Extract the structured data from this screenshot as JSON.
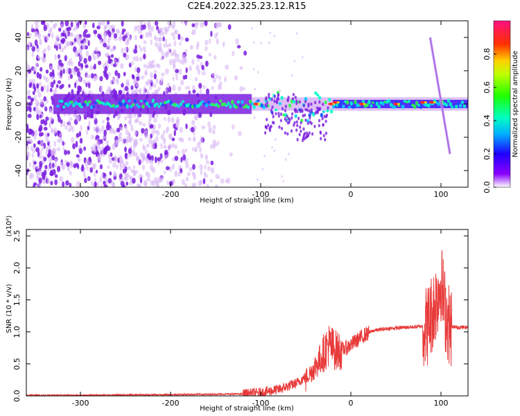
{
  "title": "C2E4.2022.325.23.12.R15",
  "colors": {
    "spectrogram_purple": "#7a1fe0",
    "spectrogram_pale": "#d9b8f5",
    "snr_line": "#e83a3a"
  },
  "chart_data": [
    {
      "type": "heatmap",
      "xlabel": "Height of straight line (km)",
      "ylabel": "Frequency (Hz)",
      "xlim": [
        -360,
        130
      ],
      "ylim": [
        -50,
        50
      ],
      "x_ticks": [
        -300,
        -200,
        -100,
        0,
        100
      ],
      "y_ticks": [
        -40,
        -20,
        0,
        20,
        40
      ],
      "colorbar": {
        "label": "Normalized spectral amplitude",
        "range": [
          0.0,
          1.0
        ],
        "ticks": [
          "0.0",
          "0.2",
          "0.4",
          "0.6",
          "0.8"
        ],
        "colormap": "rainbow"
      },
      "features": {
        "noise_region_x": [
          -360,
          -110
        ],
        "carrier_frequency_hz": 0,
        "doppler_streak": {
          "x": [
            88,
            110
          ],
          "y": [
            40,
            -30
          ]
        }
      }
    },
    {
      "type": "line",
      "xlabel": "Height of straight line (km)",
      "ylabel": "SNR (10 * v/v)",
      "yscale_label": "(x10⁴)",
      "xlim": [
        -360,
        130
      ],
      "ylim": [
        0,
        2.6
      ],
      "x_ticks": [
        -300,
        -200,
        -100,
        0,
        100
      ],
      "y_ticks": [
        "0.0",
        "0.5",
        "1.0",
        "1.5",
        "2.0",
        "2.5"
      ],
      "series": [
        {
          "x": [
            -360,
            -300,
            -200,
            -120,
            -100,
            -80,
            -60,
            -45,
            -35,
            -25,
            -15,
            -5,
            5,
            15,
            25,
            40,
            60,
            75,
            85,
            90,
            95,
            100,
            105,
            110,
            120,
            130
          ],
          "values": [
            0.01,
            0.01,
            0.02,
            0.03,
            0.05,
            0.1,
            0.2,
            0.35,
            0.55,
            0.8,
            0.7,
            0.75,
            0.85,
            0.95,
            1.02,
            1.05,
            1.07,
            1.08,
            1.1,
            1.3,
            1.5,
            1.8,
            1.3,
            1.08,
            1.07,
            1.07
          ]
        }
      ]
    }
  ]
}
